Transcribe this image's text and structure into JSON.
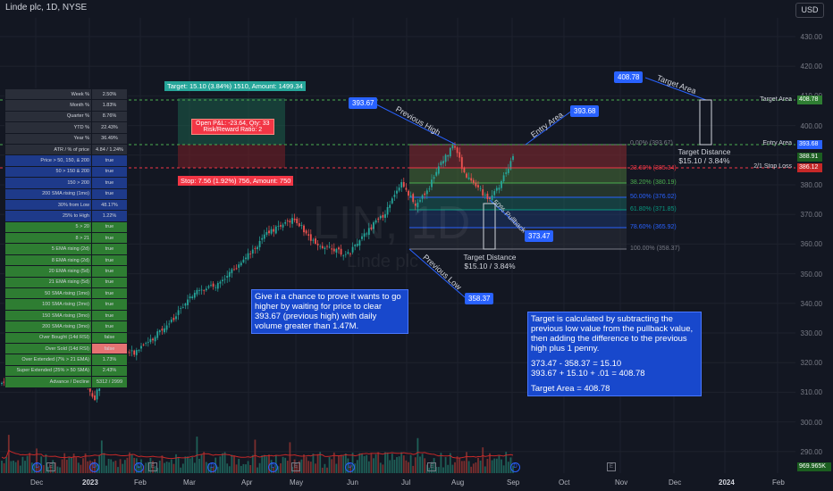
{
  "header": {
    "title": "Linde plc, 1D, NYSE",
    "currency": "USD"
  },
  "watermark": {
    "ticker": "LIN, 1D",
    "name": "Linde plc"
  },
  "price_axis": [
    "430.00",
    "420.00",
    "410.00",
    "400.00",
    "390.00",
    "380.00",
    "370.00",
    "360.00",
    "350.00",
    "340.00",
    "330.00",
    "320.00",
    "310.00",
    "300.00",
    "290.00"
  ],
  "time_axis": [
    "Dec",
    "2023",
    "Feb",
    "Mar",
    "Apr",
    "May",
    "Jun",
    "Jul",
    "Aug",
    "Sep",
    "Oct",
    "Nov",
    "Dec",
    "2024",
    "Feb"
  ],
  "price_tags": {
    "target_area_label": "Target Area",
    "target_area_value": "408.78",
    "entry_area_label": "Entry Area",
    "entry_area_value": "393.68",
    "current_value": "388.91",
    "stop_label": "2/1 Stop Loss",
    "stop_value": "386.12",
    "volume_value": "969.965K"
  },
  "position": {
    "target_text": "Target: 15.10 (3.84%) 1510, Amount: 1499.34",
    "stop_text": "Stop: 7.56 (1.92%) 756, Amount: 750",
    "pnl_line1": "Open P&L: -23.64, Qty: 33",
    "pnl_line2": "Risk/Reward Ratio: 2"
  },
  "fib_levels": [
    {
      "label": "0.00% (393.67)",
      "color": "#787b86"
    },
    {
      "label": "23.60% (385.34)",
      "color": "#f23645"
    },
    {
      "label": "38.20% (380.19)",
      "color": "#4caf50"
    },
    {
      "label": "50.00% (376.02)",
      "color": "#2962ff"
    },
    {
      "label": "61.80% (371.85)",
      "color": "#089981"
    },
    {
      "label": "78.60% (365.92)",
      "color": "#2962ff"
    },
    {
      "label": "100.00% (358.37)",
      "color": "#787b86"
    }
  ],
  "annotations": {
    "previous_high_label": "Previous High",
    "previous_high_value": "393.67",
    "previous_low_label": "Previous Low",
    "previous_low_value": "358.37",
    "entry_area_label": "Entry Area",
    "entry_value": "393.68",
    "target_area_label": "Target Area",
    "target_value": "408.78",
    "pullback_label": "50% Pullback",
    "pullback_value": "373.47",
    "target_distance_lower_title": "Target Distance",
    "target_distance_lower_value": "$15.10 / 3.84%",
    "target_distance_upper_title": "Target Distance",
    "target_distance_upper_value": "$15.10 / 3.84%"
  },
  "notes": {
    "left": "Give it a chance to prove it wants to go higher by waiting for price to clear 393.67 (previous high) with daily volume greater than 1.47M.",
    "right_p1": "Target is calculated by subtracting the previous low value from the pullback value, then adding the difference to the previous high plus 1 penny.",
    "right_p2": "373.47 - 358.37 = 15.10",
    "right_p3": "393.67 + 15.10 + .01 = 408.78",
    "right_p4": "Target Area = 408.78"
  },
  "stats_table": [
    {
      "k": "Week %",
      "v": "2.50%",
      "bg": "#2a2e39",
      "vbg": "#2a2e39"
    },
    {
      "k": "Month %",
      "v": "1.83%",
      "bg": "#2a2e39",
      "vbg": "#2a2e39"
    },
    {
      "k": "Quarter %",
      "v": "8.76%",
      "bg": "#2a2e39",
      "vbg": "#2a2e39"
    },
    {
      "k": "YTD %",
      "v": "22.43%",
      "bg": "#2a2e39",
      "vbg": "#2a2e39"
    },
    {
      "k": "Year %",
      "v": "36.49%",
      "bg": "#2a2e39",
      "vbg": "#2a2e39"
    },
    {
      "k": "ATR / % of price",
      "v": "4.84 / 1.24%",
      "bg": "#2a2e39",
      "vbg": "#2a2e39"
    },
    {
      "k": "Price > 50, 150, & 200",
      "v": "true",
      "bg": "#1e3a8a",
      "vbg": "#1e3a8a"
    },
    {
      "k": "50 > 150 & 200",
      "v": "true",
      "bg": "#1e3a8a",
      "vbg": "#1e3a8a"
    },
    {
      "k": "150 > 200",
      "v": "true",
      "bg": "#1e3a8a",
      "vbg": "#1e3a8a"
    },
    {
      "k": "200 SMA rising (1mo)",
      "v": "true",
      "bg": "#1e3a8a",
      "vbg": "#1e3a8a"
    },
    {
      "k": "30% from Low",
      "v": "48.17%",
      "bg": "#1e3a8a",
      "vbg": "#1e3a8a"
    },
    {
      "k": "25% to High",
      "v": "1.22%",
      "bg": "#1e3a8a",
      "vbg": "#1e3a8a"
    },
    {
      "k": "5 > 20",
      "v": "true",
      "bg": "#2e7d32",
      "vbg": "#2e7d32"
    },
    {
      "k": "8 > 21",
      "v": "true",
      "bg": "#2e7d32",
      "vbg": "#2e7d32"
    },
    {
      "k": "5 EMA rising (2d)",
      "v": "true",
      "bg": "#2e7d32",
      "vbg": "#2e7d32"
    },
    {
      "k": "8 EMA rising (2d)",
      "v": "true",
      "bg": "#2e7d32",
      "vbg": "#2e7d32"
    },
    {
      "k": "20 EMA rising (5d)",
      "v": "true",
      "bg": "#2e7d32",
      "vbg": "#2e7d32"
    },
    {
      "k": "21 EMA rising (5d)",
      "v": "true",
      "bg": "#2e7d32",
      "vbg": "#2e7d32"
    },
    {
      "k": "50 SMA rising (1mo)",
      "v": "true",
      "bg": "#2e7d32",
      "vbg": "#2e7d32"
    },
    {
      "k": "100 SMA rising (2mo)",
      "v": "true",
      "bg": "#2e7d32",
      "vbg": "#2e7d32"
    },
    {
      "k": "150 SMA rising (3mo)",
      "v": "true",
      "bg": "#2e7d32",
      "vbg": "#2e7d32"
    },
    {
      "k": "200 SMA rising (3mo)",
      "v": "true",
      "bg": "#2e7d32",
      "vbg": "#2e7d32"
    },
    {
      "k": "Over Bought (14d RSI)",
      "v": "false",
      "bg": "#2e7d32",
      "vbg": "#2e7d32"
    },
    {
      "k": "Over Sold (14d RSI)",
      "v": "false",
      "bg": "#2e7d32",
      "vbg": "#e57373"
    },
    {
      "k": "Over Extended (7% > 21 EMA)",
      "v": "1.73%",
      "bg": "#2e7d32",
      "vbg": "#2e7d32"
    },
    {
      "k": "Super Extended (25% > 50 SMA)",
      "v": "2.43%",
      "bg": "#2e7d32",
      "vbg": "#2e7d32"
    },
    {
      "k": "Advance / Decline",
      "v": "5312 / 2999",
      "bg": "#2e7d32",
      "vbg": "#2e7d32"
    }
  ]
}
